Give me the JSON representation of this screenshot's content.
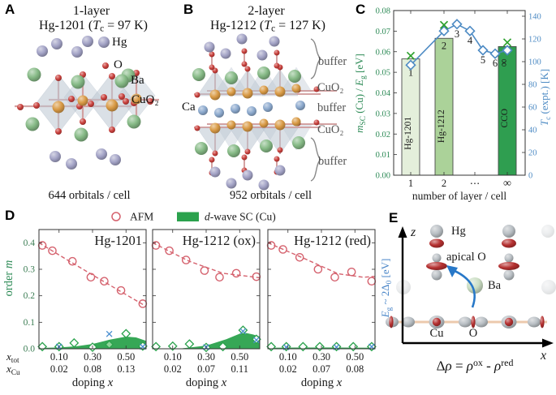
{
  "panel_a": {
    "letter": "A",
    "title": "1-layer",
    "subtitle": [
      {
        "t": "Hg-1201 ("
      },
      {
        "t": "T",
        "i": 1
      },
      {
        "t": "c",
        "sub": 1
      },
      {
        "t": " = 97 K)"
      }
    ],
    "legend": {
      "hg": "Hg",
      "o": "O",
      "ba": "Ba",
      "cuo2": "CuO₂"
    },
    "caption": "644 orbitals / cell"
  },
  "panel_b": {
    "letter": "B",
    "title": "2-layer",
    "subtitle": [
      {
        "t": "Hg-1212 ("
      },
      {
        "t": "T",
        "i": 1
      },
      {
        "t": "c",
        "sub": 1
      },
      {
        "t": " = 127 K)"
      }
    ],
    "ca_label": "Ca",
    "layers": [
      "buffer",
      "CuO₂",
      "buffer",
      "CuO₂",
      "buffer"
    ],
    "caption": "952 orbitals / cell"
  },
  "panel_c": {
    "letter": "C",
    "ylabel_left_rich": [
      {
        "t": "m",
        "i": 1
      },
      {
        "t": "SC",
        "sub": 1
      },
      {
        "t": " (Cu) / "
      },
      {
        "t": "E",
        "i": 1
      },
      {
        "t": "g",
        "sub": 1
      },
      {
        "t": " [eV]"
      }
    ],
    "ylabel_right_rich": [
      {
        "t": "T",
        "i": 1
      },
      {
        "t": "c",
        "sub": 1
      },
      {
        "t": " (expt.) [K]"
      }
    ]
  },
  "panel_d": {
    "letter": "D",
    "legend_afm": "AFM",
    "legend_sc_rich": [
      {
        "t": "d",
        "i": 1
      },
      {
        "t": "-wave SC (Cu)"
      }
    ],
    "ylabel_rich": [
      {
        "t": "order "
      },
      {
        "t": "m",
        "i": 1
      }
    ],
    "row1_rich": [
      {
        "t": "x",
        "i": 1
      },
      {
        "t": "tot",
        "sub": 1
      }
    ],
    "row2_rich": [
      {
        "t": "x",
        "i": 1
      },
      {
        "t": "Cu",
        "sub": 1
      }
    ],
    "xlabel_rich": [
      {
        "t": "doping "
      },
      {
        "t": "x",
        "i": 1
      }
    ]
  },
  "panel_e": {
    "letter": "E",
    "z": "z",
    "x": "x",
    "hg": "Hg",
    "apical": "apical O",
    "ba": "Ba",
    "cu": "Cu",
    "o": "O",
    "gap_rich": [
      {
        "t": "E",
        "i": 1
      },
      {
        "t": "g",
        "sub": 1
      },
      {
        "t": " ~ 2Δ"
      },
      {
        "t": "0",
        "sub": 1
      },
      {
        "t": " [eV]"
      }
    ],
    "equation_rich": [
      {
        "t": "Δ"
      },
      {
        "t": "ρ",
        "i": 1
      },
      {
        "t": " = "
      },
      {
        "t": "ρ",
        "i": 1
      },
      {
        "t": "ox",
        "sup": 1
      },
      {
        "t": " - "
      },
      {
        "t": "ρ",
        "i": 1
      },
      {
        "t": "red",
        "sup": 1
      }
    ]
  },
  "chart_data": [
    {
      "id": "tc-vs-layers",
      "type": "bar",
      "xlabel": "number of layer / cell",
      "ylabel_left": "m_SC (Cu) / E_g [eV]",
      "ylabel_right": "T_c (expt.) [K]",
      "ylim_left": [
        0,
        0.08
      ],
      "yticks_left": [
        0,
        0.01,
        0.02,
        0.03,
        0.04,
        0.05,
        0.06,
        0.07,
        0.08
      ],
      "ylim_right": [
        0,
        145
      ],
      "yticks_right": [
        0,
        20,
        40,
        60,
        80,
        100,
        120,
        140
      ],
      "xticklabels": [
        "1",
        "2",
        "⋯",
        "∞"
      ],
      "bars": [
        {
          "name": "Hg-1201",
          "layer": "1",
          "value": 0.0565,
          "color": "#e4efdb"
        },
        {
          "name": "Hg-1212",
          "layer": "2",
          "value": 0.0665,
          "color": "#abd299"
        },
        {
          "name": "CCO",
          "layer": "∞",
          "value": 0.0625,
          "color": "#2f9e50"
        }
      ],
      "tc_points": [
        {
          "label": "1",
          "tc": 97
        },
        {
          "label": "2",
          "tc": 127
        },
        {
          "label": "3",
          "tc": 133
        },
        {
          "label": "4",
          "tc": 127
        },
        {
          "label": "5",
          "tc": 110
        },
        {
          "label": "6",
          "tc": 107
        },
        {
          "label": "∞",
          "tc": 110
        }
      ],
      "x_markers": [
        {
          "label": "1",
          "value": 0.058
        },
        {
          "label": "2",
          "value": 0.073
        },
        {
          "label": "∞",
          "value": 0.0645
        }
      ]
    },
    {
      "id": "hg1201",
      "type": "scatter",
      "title": "Hg-1201",
      "ylim": [
        0,
        0.45
      ],
      "yticks": [
        0,
        0.1,
        0.2,
        0.3,
        0.4
      ],
      "xticks_xtot": [
        "0.10",
        "0.30",
        "0.50"
      ],
      "xticks_xcu": [
        "0.02",
        "0.08",
        "0.13"
      ],
      "afm": [
        [
          0.0,
          0.39
        ],
        [
          0.06,
          0.37
        ],
        [
          0.18,
          0.33
        ],
        [
          0.29,
          0.27
        ],
        [
          0.37,
          0.255
        ],
        [
          0.47,
          0.22
        ],
        [
          0.6,
          0.17
        ]
      ],
      "afm_trend": [
        [
          -0.02,
          0.4
        ],
        [
          0.15,
          0.335
        ],
        [
          0.35,
          0.26
        ],
        [
          0.62,
          0.16
        ]
      ],
      "sc_diamonds": [
        [
          0.0,
          0.008,
          0
        ],
        [
          0.1,
          0.008,
          0
        ],
        [
          0.19,
          0.022,
          0
        ],
        [
          0.3,
          0.006,
          0
        ],
        [
          0.4,
          0.016,
          1
        ],
        [
          0.5,
          0.057,
          0
        ],
        [
          0.6,
          0.01,
          0
        ]
      ],
      "sc_area": [
        [
          -0.02,
          0.003
        ],
        [
          0.1,
          0.005
        ],
        [
          0.2,
          0.009
        ],
        [
          0.3,
          0.018
        ],
        [
          0.4,
          0.034
        ],
        [
          0.5,
          0.046
        ],
        [
          0.56,
          0.043
        ],
        [
          0.62,
          0.03
        ]
      ],
      "x_markers": [
        [
          0.1,
          0.008
        ],
        [
          0.4,
          0.056
        ],
        [
          0.6,
          0.008
        ]
      ]
    },
    {
      "id": "hg1212-ox",
      "type": "scatter",
      "title": "Hg-1212 (ox)",
      "ylim": [
        0,
        0.45
      ],
      "yticks": [
        0,
        0.1,
        0.2,
        0.3,
        0.4
      ],
      "xticks_xtot": [
        "0.10",
        "0.30",
        "0.50"
      ],
      "xticks_xcu": [
        "0.02",
        "0.07",
        "0.11"
      ],
      "afm": [
        [
          0.0,
          0.39
        ],
        [
          0.08,
          0.37
        ],
        [
          0.18,
          0.335
        ],
        [
          0.29,
          0.295
        ],
        [
          0.38,
          0.27
        ],
        [
          0.48,
          0.285
        ],
        [
          0.6,
          0.272
        ]
      ],
      "afm_trend": [
        [
          -0.02,
          0.4
        ],
        [
          0.2,
          0.33
        ],
        [
          0.4,
          0.285
        ],
        [
          0.62,
          0.268
        ]
      ],
      "sc_diamonds": [
        [
          0.0,
          0.008,
          0
        ],
        [
          0.1,
          0.01,
          0
        ],
        [
          0.2,
          0.018,
          0
        ],
        [
          0.3,
          0.005,
          0
        ],
        [
          0.4,
          0.008,
          0
        ],
        [
          0.52,
          0.07,
          0
        ],
        [
          0.6,
          0.036,
          0
        ]
      ],
      "sc_area": [
        [
          0.16,
          0.002
        ],
        [
          0.3,
          0.012
        ],
        [
          0.42,
          0.036
        ],
        [
          0.52,
          0.062
        ],
        [
          0.58,
          0.054
        ],
        [
          0.62,
          0.046
        ]
      ],
      "x_markers": [
        [
          0.3,
          0.006
        ],
        [
          0.52,
          0.066
        ],
        [
          0.6,
          0.033
        ]
      ]
    },
    {
      "id": "hg1212-red",
      "type": "scatter",
      "title": "Hg-1212 (red)",
      "ylim": [
        0,
        0.45
      ],
      "yticks": [
        0,
        0.1,
        0.2,
        0.3,
        0.4
      ],
      "xticks_xtot": [
        "0.10",
        "0.30",
        "0.50"
      ],
      "xticks_xcu": [
        "0.02",
        "0.07",
        "0.08"
      ],
      "afm": [
        [
          0.0,
          0.39
        ],
        [
          0.07,
          0.375
        ],
        [
          0.17,
          0.345
        ],
        [
          0.28,
          0.3
        ],
        [
          0.38,
          0.27
        ],
        [
          0.48,
          0.29
        ],
        [
          0.6,
          0.255
        ]
      ],
      "afm_trend": [
        [
          -0.02,
          0.4
        ],
        [
          0.2,
          0.34
        ],
        [
          0.4,
          0.283
        ],
        [
          0.55,
          0.27
        ],
        [
          0.62,
          0.273
        ]
      ],
      "sc_diamonds": [
        [
          0.0,
          0.008,
          0
        ],
        [
          0.09,
          0.008,
          0
        ],
        [
          0.19,
          0.008,
          0
        ],
        [
          0.29,
          0.008,
          0
        ],
        [
          0.39,
          0.008,
          0
        ],
        [
          0.49,
          0.008,
          0
        ],
        [
          0.6,
          0.008,
          0
        ]
      ],
      "sc_area": [
        [
          -0.02,
          0.004
        ],
        [
          0.3,
          0.005
        ],
        [
          0.62,
          0.004
        ]
      ],
      "x_markers": [
        [
          0.09,
          0.006
        ],
        [
          0.39,
          0.006
        ],
        [
          0.6,
          0.008
        ]
      ]
    }
  ],
  "colors": {
    "afm": "#d5626e",
    "sc_green": "#2ba24d",
    "blue": "#4e8bc4",
    "green_x": "#2ea12e",
    "axis_green": "#2e8b57",
    "tick_green": "#3c7d54",
    "blue_x": "#4a8fd0",
    "hg": "#a3a3c6",
    "o": "#c9403c",
    "ba": "#85b985",
    "cu": "#d99a45",
    "ca": "#8ca9cd",
    "octa": "#bdc8d3",
    "bond": "#d09a9a",
    "gray_atom": "#b9bfc4",
    "lobe": "#b53030",
    "ba_pale": "#c8dcc0",
    "bar_edge": "#4a4a4a"
  }
}
